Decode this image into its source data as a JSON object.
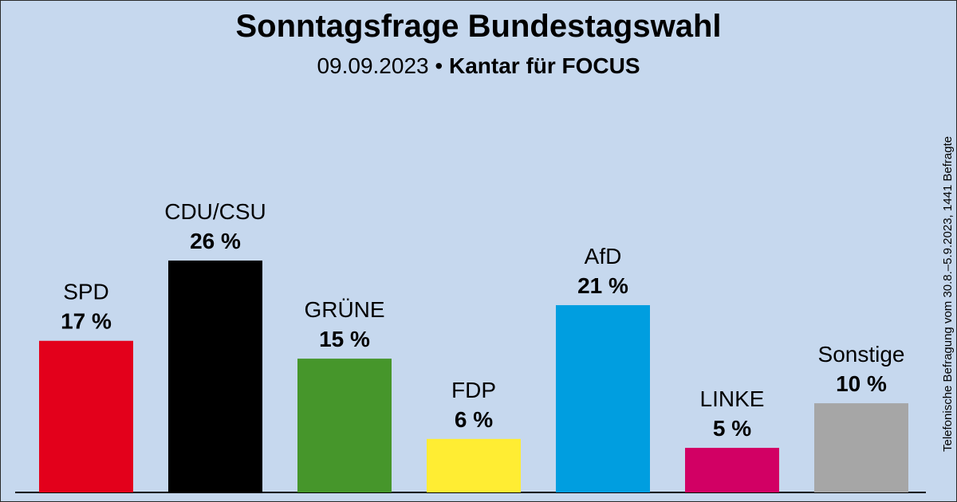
{
  "header": {
    "title": "Sonntagsfrage Bundestagswahl",
    "date": "09.09.2023",
    "separator": "•",
    "institute": "Kantar für FOCUS"
  },
  "note": "Telefonische Befragung vom 30.8.–5.9.2023, 1441 Befragte",
  "chart_data": {
    "type": "bar",
    "title": "Sonntagsfrage Bundestagswahl",
    "categories": [
      "SPD",
      "CDU/CSU",
      "GRÜNE",
      "FDP",
      "AfD",
      "LINKE",
      "Sonstige"
    ],
    "values": [
      17,
      26,
      15,
      6,
      21,
      5,
      10
    ],
    "value_labels": [
      "17 %",
      "26 %",
      "15 %",
      "6 %",
      "21 %",
      "5 %",
      "10 %"
    ],
    "colors": [
      "#e3001b",
      "#000000",
      "#46962b",
      "#ffed33",
      "#009ee0",
      "#d20064",
      "#a6a6a6"
    ],
    "ylim": [
      0,
      26
    ],
    "grid": false,
    "legend": "none"
  }
}
